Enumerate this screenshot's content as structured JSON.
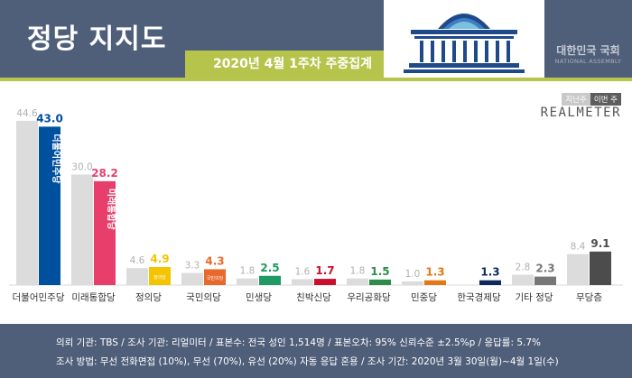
{
  "header": {
    "title": "정당 지지도",
    "subtitle": "2020년 4월 1주차 주중집계",
    "assembly_name_ko": "대한민국 국회",
    "assembly_name_en": "NATIONAL ASSEMBLY"
  },
  "legend": {
    "previous": "지난주",
    "current": "이번 주"
  },
  "brand": "REALMETER",
  "chart_data": {
    "type": "bar",
    "categories": [
      "더불어민주당",
      "미래통합당",
      "정의당",
      "국민의당",
      "민생당",
      "친박신당",
      "우리공화당",
      "민중당",
      "한국경제당",
      "기타 정당",
      "무당층"
    ],
    "series": [
      {
        "name": "지난주",
        "values": [
          44.6,
          30.0,
          4.6,
          3.3,
          1.8,
          1.6,
          1.8,
          1.0,
          null,
          2.8,
          8.4
        ]
      },
      {
        "name": "이번 주",
        "values": [
          43.0,
          28.2,
          4.9,
          4.3,
          2.5,
          1.7,
          1.5,
          1.3,
          1.3,
          2.3,
          9.1
        ]
      }
    ],
    "value_labels_previous": [
      "44.6",
      "30.0",
      "4.6",
      "3.3",
      "1.8",
      "1.6",
      "1.8",
      "1.0",
      "",
      "2.8",
      "8.4"
    ],
    "value_labels_current": [
      "43.0",
      "28.2",
      "4.9",
      "4.3",
      "2.5",
      "1.7",
      "1.5",
      "1.3",
      "1.3",
      "2.3",
      "9.1"
    ],
    "bar_logo_text": [
      "더불어민주당",
      "미래통합당",
      "정의당",
      "국민의당",
      "",
      "",
      "",
      "",
      "",
      "",
      ""
    ],
    "colors": [
      "#0050a0",
      "#e83e6c",
      "#f4c400",
      "#e9692c",
      "#1f9a63",
      "#c8102e",
      "#2c8c4a",
      "#e07a14",
      "#0f2a5a",
      "#777777",
      "#4c4c4c"
    ],
    "previous_color": "#dcdcdc",
    "ylim": [
      0,
      48
    ]
  },
  "footer": {
    "line1": "의뢰 기관: TBS / 조사 기관: 리얼미터 / 표본수: 전국 성인 1,514명 / 표본오차: 95% 신뢰수준 ±2.5%p / 응답률: 5.7%",
    "line2": "조사 방법: 무선 전화면접 (10%), 무선 (70%), 유선 (20%) 자동 응답 혼용 / 조사 기간: 2020년 3월 30일(월)~4월 1일(수)"
  }
}
